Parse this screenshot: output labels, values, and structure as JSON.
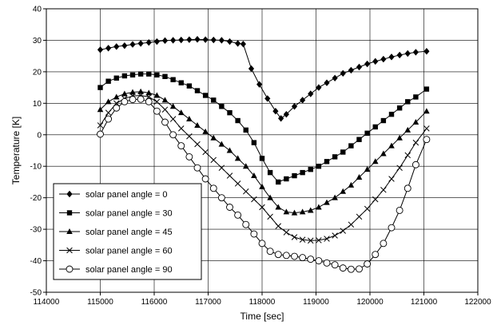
{
  "chart_data": {
    "type": "line",
    "xlabel": "Time [sec]",
    "ylabel": "Temperature [K]",
    "xlim": [
      114000,
      122000
    ],
    "ylim": [
      -50,
      40
    ],
    "x_ticks": [
      114000,
      115000,
      116000,
      117000,
      118000,
      119000,
      120000,
      121000,
      122000
    ],
    "y_ticks": [
      -50,
      -40,
      -30,
      -20,
      -10,
      0,
      10,
      20,
      30,
      40
    ],
    "grid": true,
    "legend_position": "bottom-left",
    "series": [
      {
        "name": "solar panel angle = 0",
        "marker": "diamond",
        "x": [
          115000,
          115150,
          115300,
          115450,
          115600,
          115750,
          115900,
          116050,
          116200,
          116350,
          116500,
          116650,
          116800,
          116950,
          117100,
          117250,
          117400,
          117550,
          117650,
          117800,
          117950,
          118100,
          118250,
          118350,
          118450,
          118600,
          118750,
          118900,
          119050,
          119200,
          119350,
          119500,
          119650,
          119800,
          119950,
          120100,
          120250,
          120400,
          120550,
          120700,
          120850,
          121050
        ],
        "y": [
          27,
          27.5,
          28,
          28.3,
          28.7,
          29,
          29.3,
          29.6,
          29.9,
          30,
          30.1,
          30.2,
          30.3,
          30.2,
          30.1,
          30,
          29.6,
          29,
          28.8,
          21,
          16,
          11.5,
          7.5,
          5.2,
          6.5,
          9,
          11,
          13,
          15,
          16.5,
          18,
          19.5,
          20.5,
          21.5,
          22.5,
          23.3,
          24,
          24.7,
          25.3,
          25.8,
          26.2,
          26.5
        ]
      },
      {
        "name": "solar panel angle = 30",
        "marker": "square",
        "x": [
          115000,
          115150,
          115300,
          115450,
          115600,
          115750,
          115900,
          116050,
          116200,
          116350,
          116500,
          116650,
          116800,
          116950,
          117100,
          117250,
          117400,
          117550,
          117700,
          117850,
          118000,
          118150,
          118300,
          118450,
          118600,
          118750,
          118900,
          119050,
          119200,
          119350,
          119500,
          119650,
          119800,
          119950,
          120100,
          120250,
          120400,
          120550,
          120700,
          120850,
          121050
        ],
        "y": [
          15,
          17,
          18,
          18.7,
          19,
          19.3,
          19.3,
          19,
          18.5,
          17.5,
          16.5,
          15.5,
          14,
          12.5,
          11,
          9,
          7,
          4.5,
          1.5,
          -2.5,
          -7.5,
          -12,
          -15,
          -14,
          -13,
          -12,
          -11,
          -10,
          -8.5,
          -7,
          -5.5,
          -3.5,
          -1.5,
          0.5,
          2.5,
          4.5,
          6.5,
          8.5,
          10.5,
          12,
          14.5
        ]
      },
      {
        "name": "solar panel angle = 45",
        "marker": "triangle",
        "x": [
          115000,
          115150,
          115300,
          115450,
          115600,
          115750,
          115900,
          116050,
          116200,
          116350,
          116500,
          116650,
          116800,
          116950,
          117100,
          117250,
          117400,
          117550,
          117700,
          117850,
          118000,
          118150,
          118300,
          118450,
          118600,
          118750,
          118900,
          119050,
          119200,
          119350,
          119500,
          119650,
          119800,
          119950,
          120100,
          120250,
          120400,
          120550,
          120700,
          120850,
          121050
        ],
        "y": [
          8,
          10.5,
          12,
          13,
          13.5,
          13.7,
          13.3,
          12.5,
          11,
          9,
          7,
          5,
          3,
          1,
          -1,
          -3,
          -5,
          -7.5,
          -10,
          -13,
          -16.5,
          -20,
          -23,
          -24.5,
          -24.8,
          -24.5,
          -24,
          -23,
          -21.5,
          -20,
          -18,
          -16,
          -13.5,
          -11,
          -8.5,
          -6,
          -3.5,
          -1,
          1.5,
          4,
          7.5
        ]
      },
      {
        "name": "solar panel angle = 60",
        "marker": "x",
        "x": [
          115000,
          115150,
          115300,
          115450,
          115600,
          115750,
          115900,
          116050,
          116200,
          116350,
          116500,
          116650,
          116800,
          116950,
          117100,
          117250,
          117400,
          117550,
          117700,
          117850,
          118000,
          118150,
          118300,
          118450,
          118600,
          118750,
          118900,
          119050,
          119200,
          119350,
          119500,
          119650,
          119800,
          119950,
          120100,
          120250,
          120400,
          120550,
          120700,
          120850,
          121050
        ],
        "y": [
          3,
          7,
          10,
          11.5,
          12.3,
          12.5,
          12,
          10.5,
          8,
          5,
          2,
          -0.5,
          -3,
          -5.5,
          -8,
          -10.5,
          -13,
          -15.5,
          -18,
          -20.5,
          -23,
          -26,
          -29,
          -31,
          -32.5,
          -33.3,
          -33.6,
          -33.5,
          -33,
          -32,
          -30.5,
          -28.5,
          -26,
          -23.5,
          -20.5,
          -17.5,
          -14,
          -10.5,
          -6.5,
          -2.5,
          2
        ]
      },
      {
        "name": "solar panel angle = 90",
        "marker": "circle",
        "x": [
          115000,
          115150,
          115300,
          115450,
          115600,
          115750,
          115900,
          116050,
          116200,
          116350,
          116500,
          116650,
          116800,
          116950,
          117100,
          117250,
          117400,
          117550,
          117700,
          117850,
          118000,
          118150,
          118300,
          118450,
          118600,
          118750,
          118900,
          119050,
          119200,
          119350,
          119500,
          119650,
          119800,
          119950,
          120100,
          120250,
          120400,
          120550,
          120700,
          120850,
          121050
        ],
        "y": [
          0.2,
          5,
          8.5,
          10.5,
          11.2,
          11.3,
          10.5,
          7.5,
          4,
          0,
          -3.5,
          -7,
          -10.5,
          -14,
          -17,
          -20,
          -23,
          -25.5,
          -28.5,
          -31.5,
          -34.5,
          -37,
          -38,
          -38.3,
          -38.6,
          -39,
          -39.5,
          -40,
          -40.7,
          -41.3,
          -42.3,
          -42.7,
          -42.6,
          -41,
          -38,
          -34.5,
          -29.5,
          -24,
          -17,
          -9.5,
          -1.5
        ]
      }
    ]
  }
}
